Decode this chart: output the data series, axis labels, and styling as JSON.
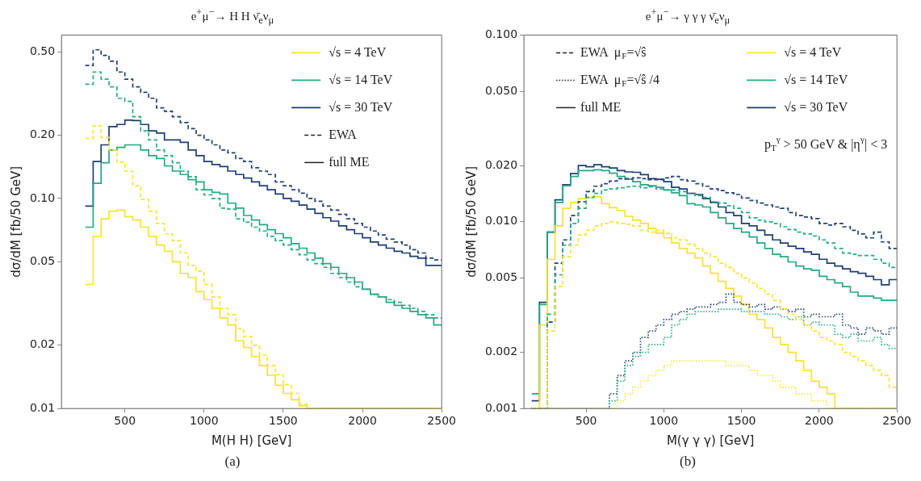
{
  "chart_data": [
    {
      "type": "histogram",
      "title": "e$^{+}$μ$^{−}$→ H H ν̄$_{e}$ν$_{μ}$",
      "xlabel": "M(H H) [GeV]",
      "ylabel": "dσ/dM [fb/50 GeV]",
      "log": "y",
      "legend": "top right",
      "bins": [
        250,
        300,
        350,
        400,
        450,
        500,
        550,
        600,
        650,
        700,
        750,
        800,
        850,
        900,
        950,
        1000,
        1050,
        1100,
        1150,
        1200,
        1250,
        1300,
        1350,
        1400,
        1450,
        1500,
        1550,
        1600,
        1650,
        1700,
        1750,
        1800,
        1850,
        1900,
        1950,
        2000,
        2050,
        2100,
        2150,
        2200,
        2250,
        2300,
        2350,
        2400,
        2450,
        2500
      ],
      "xlim": [
        100,
        2500
      ],
      "xticks": [
        500,
        1000,
        1500,
        2000,
        2500
      ],
      "ylim": [
        0.01,
        0.6
      ],
      "yticks": [
        0.01,
        0.02,
        0.05,
        {
          "value": 0.1,
          "label": "0.10"
        },
        {
          "value": 0.2,
          "label": "0.20"
        },
        {
          "value": 0.5,
          "label": "0.50"
        }
      ],
      "annotations": [
        "EWA",
        "full ME",
        "(a)"
      ],
      "series": [
        {
          "color": "#fbe437",
          "line_style": "dashed",
          "values": [
            0.193,
            0.222,
            0.195,
            0.17,
            0.149,
            0.135,
            0.115,
            0.099,
            0.087,
            0.076,
            0.068,
            0.063,
            0.055,
            0.048,
            0.045,
            0.039,
            0.034,
            0.03,
            0.028,
            0.024,
            0.022,
            0.02,
            0.018,
            0.016,
            0.0145,
            0.013,
            0.0118,
            0.0105,
            null,
            null,
            null,
            null,
            null,
            null,
            null,
            null,
            null,
            null,
            null,
            null,
            null,
            null,
            null,
            null,
            null
          ]
        },
        {
          "color": "#28ab86",
          "line_style": "dashed",
          "values": [
            0.35,
            0.4,
            0.37,
            0.34,
            0.3,
            0.29,
            0.245,
            0.21,
            0.19,
            0.17,
            0.16,
            0.148,
            0.135,
            0.127,
            0.11,
            0.104,
            0.1,
            0.09,
            0.089,
            0.08,
            0.077,
            0.073,
            0.07,
            0.066,
            0.063,
            0.06,
            0.057,
            0.054,
            0.051,
            0.049,
            0.047,
            0.044,
            0.042,
            0.04,
            0.038,
            0.037,
            0.035,
            0.034,
            0.033,
            0.032,
            0.031,
            0.03,
            0.029,
            0.028,
            0.027
          ]
        },
        {
          "color": "#204274",
          "line_style": "dashed",
          "values": [
            0.43,
            0.51,
            0.48,
            0.45,
            0.4,
            0.37,
            0.34,
            0.32,
            0.3,
            0.27,
            0.26,
            0.245,
            0.23,
            0.215,
            0.2,
            0.19,
            0.18,
            0.17,
            0.165,
            0.155,
            0.15,
            0.14,
            0.135,
            0.13,
            0.12,
            0.115,
            0.11,
            0.106,
            0.1,
            0.097,
            0.092,
            0.088,
            0.084,
            0.08,
            0.076,
            0.073,
            0.07,
            0.067,
            0.064,
            0.062,
            0.06,
            0.057,
            0.055,
            0.052,
            0.051
          ]
        },
        {
          "name": "√s = 4 TeV",
          "color": "#fbe134",
          "line_style": "solid",
          "values": [
            0.039,
            0.066,
            0.08,
            0.087,
            0.088,
            0.082,
            0.079,
            0.073,
            0.066,
            0.06,
            0.056,
            0.05,
            0.044,
            0.042,
            0.036,
            0.033,
            0.03,
            0.027,
            0.025,
            0.021,
            0.0195,
            0.0177,
            0.016,
            0.0144,
            0.0129,
            0.0118,
            0.011,
            0.0103,
            null,
            null,
            null,
            null,
            null,
            null,
            null,
            null,
            null,
            null,
            null,
            null,
            null,
            null,
            null,
            null,
            null
          ]
        },
        {
          "name": "√s = 14 TeV",
          "color": "#25a883",
          "line_style": "solid",
          "values": [
            0.073,
            0.118,
            0.148,
            0.17,
            0.175,
            0.18,
            0.18,
            0.17,
            0.16,
            0.155,
            0.143,
            0.135,
            0.13,
            0.123,
            0.12,
            0.11,
            0.107,
            0.105,
            0.095,
            0.09,
            0.083,
            0.079,
            0.075,
            0.071,
            0.068,
            0.065,
            0.061,
            0.058,
            0.055,
            0.052,
            0.049,
            0.047,
            0.044,
            0.042,
            0.04,
            0.037,
            0.035,
            0.034,
            0.032,
            0.031,
            0.03,
            0.029,
            0.028,
            0.027,
            0.025
          ]
        },
        {
          "name": "√s = 30 TeV",
          "color": "#1d3f71",
          "line_style": "solid",
          "values": [
            0.092,
            0.15,
            0.18,
            0.22,
            0.225,
            0.236,
            0.235,
            0.225,
            0.21,
            0.205,
            0.19,
            0.19,
            0.185,
            0.17,
            0.16,
            0.15,
            0.145,
            0.142,
            0.135,
            0.13,
            0.125,
            0.12,
            0.115,
            0.11,
            0.105,
            0.1,
            0.097,
            0.093,
            0.089,
            0.085,
            0.081,
            0.078,
            0.074,
            0.071,
            0.068,
            0.065,
            0.062,
            0.06,
            0.058,
            0.056,
            0.055,
            0.053,
            0.052,
            0.048,
            0.048
          ]
        }
      ]
    },
    {
      "type": "histogram",
      "title": "e$^{+}$μ$^{−}$→ γ γ γ ν̄$_{e}$ν$_{μ}$",
      "xlabel": "M(γ γ γ) [GeV]",
      "ylabel": "dσ/dM [fb/50 GeV]",
      "log": "y",
      "legend": "top right",
      "bins": [
        150,
        200,
        250,
        300,
        350,
        400,
        450,
        500,
        550,
        600,
        650,
        700,
        750,
        800,
        850,
        900,
        950,
        1000,
        1050,
        1100,
        1150,
        1200,
        1250,
        1300,
        1350,
        1400,
        1450,
        1500,
        1550,
        1600,
        1650,
        1700,
        1750,
        1800,
        1850,
        1900,
        1950,
        2000,
        2050,
        2100,
        2150,
        2200,
        2250,
        2300,
        2350,
        2400,
        2450,
        2500
      ],
      "xlim": [
        100,
        2500
      ],
      "xticks": [
        500,
        1000,
        1500,
        2000,
        2500
      ],
      "ylim": [
        0.001,
        0.1
      ],
      "yticks": [
        0.001,
        0.002,
        0.005,
        {
          "value": 0.01,
          "label": "0.010"
        },
        {
          "value": 0.02,
          "label": "0.020"
        },
        {
          "value": 0.05,
          "label": "0.050"
        },
        {
          "value": 0.1,
          "label": "0.100"
        }
      ],
      "annotations": [
        "EWA  μ$_{F}$=√ŝ",
        "EWA  μ$_{F}$=√ŝ /4",
        "full ME",
        "p$_{T}$$^{γ}$ > 50 GeV & |η$^{γ}$| < 3",
        "(b)"
      ],
      "series": [
        {
          "color": "#fbe437",
          "line_style": "dashed",
          "values": [
            null,
            null,
            0.0026,
            0.0045,
            0.0065,
            0.0075,
            0.0085,
            0.009,
            0.0095,
            0.0098,
            0.01,
            0.0098,
            0.0097,
            0.0095,
            0.009,
            0.0088,
            0.009,
            0.0087,
            0.0082,
            0.008,
            0.0076,
            0.0072,
            0.0068,
            0.0065,
            0.006,
            0.0057,
            0.0053,
            0.005,
            0.0047,
            0.0044,
            0.0041,
            0.0038,
            0.0034,
            0.0032,
            0.003,
            0.0028,
            0.0026,
            0.0024,
            0.0023,
            0.0022,
            0.002,
            0.0019,
            0.0018,
            0.0017,
            0.0016,
            0.0015,
            0.0013
          ]
        },
        {
          "color": "#28ab86",
          "line_style": "dashed",
          "values": [
            null,
            null,
            0.0032,
            0.0052,
            0.0075,
            0.0098,
            0.0118,
            0.0135,
            0.0142,
            0.0148,
            0.015,
            0.0152,
            0.0154,
            0.0155,
            0.0152,
            0.0154,
            0.015,
            0.0148,
            0.0148,
            0.0145,
            0.0142,
            0.0138,
            0.0135,
            0.0128,
            0.0126,
            0.0122,
            0.0118,
            0.0112,
            0.0105,
            0.0102,
            0.01,
            0.0098,
            0.0094,
            0.0091,
            0.0088,
            0.0086,
            0.0084,
            0.008,
            0.0077,
            0.0072,
            0.0068,
            0.0067,
            0.0066,
            0.0066,
            0.0063,
            0.006,
            0.0057
          ]
        },
        {
          "color": "#204274",
          "line_style": "dashed",
          "values": [
            null,
            null,
            0.0029,
            0.006,
            0.008,
            0.0108,
            0.0128,
            0.0145,
            0.0155,
            0.016,
            0.0165,
            0.017,
            0.017,
            0.0172,
            0.017,
            0.0168,
            0.0168,
            0.0172,
            0.0175,
            0.0168,
            0.0165,
            0.016,
            0.0155,
            0.015,
            0.0147,
            0.0143,
            0.014,
            0.0134,
            0.013,
            0.0126,
            0.0123,
            0.012,
            0.0118,
            0.0112,
            0.0108,
            0.0106,
            0.0104,
            0.0098,
            0.0096,
            0.0098,
            0.0094,
            0.009,
            0.0086,
            0.0082,
            0.0088,
            0.0078,
            0.0072
          ]
        },
        {
          "color": "#fbe73a",
          "line_style": "dotted",
          "values": [
            null,
            null,
            null,
            null,
            null,
            null,
            null,
            null,
            null,
            null,
            null,
            0.0011,
            0.0012,
            0.0013,
            0.0014,
            0.0015,
            0.0016,
            0.0017,
            0.0018,
            0.0018,
            0.0018,
            0.0018,
            0.0018,
            0.0018,
            0.0018,
            0.0017,
            0.0017,
            0.0017,
            0.0016,
            0.0015,
            0.0015,
            0.0014,
            0.0013,
            0.0013,
            0.0012,
            0.0012,
            0.0011,
            0.0011,
            null,
            null,
            null,
            null,
            null,
            null,
            null,
            null,
            null
          ]
        },
        {
          "color": "#2bae89",
          "line_style": "dotted",
          "values": [
            null,
            null,
            null,
            null,
            null,
            null,
            null,
            null,
            null,
            null,
            0.0011,
            0.0014,
            0.0017,
            0.0019,
            0.002,
            0.0022,
            0.0022,
            0.0024,
            0.0028,
            0.003,
            0.0032,
            0.0033,
            0.0033,
            0.0033,
            0.0034,
            0.0034,
            0.0034,
            0.0033,
            0.0033,
            0.0033,
            0.0032,
            0.0032,
            0.0031,
            0.003,
            0.0031,
            0.0028,
            0.0029,
            0.0028,
            0.0028,
            0.0025,
            0.0024,
            0.0025,
            0.0023,
            0.0023,
            0.0024,
            0.0022,
            0.0021
          ]
        },
        {
          "color": "#234577",
          "line_style": "dotted",
          "values": [
            null,
            null,
            null,
            null,
            null,
            null,
            null,
            null,
            null,
            null,
            0.0012,
            0.0015,
            0.0018,
            0.002,
            0.0024,
            0.0026,
            0.0028,
            0.003,
            0.0032,
            0.0033,
            0.0034,
            0.0035,
            0.0035,
            0.0036,
            0.0037,
            0.0041,
            0.0037,
            0.0036,
            0.0035,
            0.0036,
            0.0034,
            0.0035,
            0.0034,
            0.0033,
            0.0034,
            0.0031,
            0.0032,
            0.0031,
            0.0031,
            0.0032,
            0.0028,
            0.0027,
            0.0025,
            0.0027,
            0.0026,
            0.0025,
            0.0027
          ]
        },
        {
          "name": "√s = 4 TeV",
          "color": "#fbe134",
          "line_style": "solid",
          "values": [
            null,
            0.0028,
            0.0063,
            0.0095,
            0.0118,
            0.0127,
            0.0133,
            0.0135,
            0.0136,
            0.0125,
            0.0119,
            0.0115,
            0.0107,
            0.0102,
            0.0098,
            0.0092,
            0.0087,
            0.0082,
            0.0077,
            0.0072,
            0.0068,
            0.0064,
            0.0058,
            0.0053,
            0.0048,
            0.0044,
            0.004,
            0.0036,
            0.0032,
            0.003,
            0.0027,
            0.0024,
            0.0022,
            0.002,
            0.0018,
            0.0016,
            0.0014,
            0.0013,
            0.0012,
            null,
            null,
            null,
            null,
            null,
            null,
            null,
            null
          ]
        },
        {
          "name": "√s = 14 TeV",
          "color": "#25a883",
          "line_style": "solid",
          "values": [
            0.0012,
            0.0036,
            0.0088,
            0.0127,
            0.0156,
            0.0175,
            0.0188,
            0.0188,
            0.019,
            0.0188,
            0.0182,
            0.0175,
            0.0169,
            0.0164,
            0.0158,
            0.0156,
            0.0153,
            0.0148,
            0.0143,
            0.0138,
            0.0125,
            0.0123,
            0.012,
            0.0112,
            0.0105,
            0.0098,
            0.0092,
            0.0088,
            0.0083,
            0.0077,
            0.0072,
            0.0067,
            0.0065,
            0.0061,
            0.0058,
            0.0056,
            0.0055,
            0.0051,
            0.0049,
            0.0047,
            0.0045,
            0.0042,
            0.004,
            0.004,
            0.0039,
            0.0038,
            0.0038
          ]
        },
        {
          "name": "√s = 30 TeV",
          "color": "#1d3f71",
          "line_style": "solid",
          "values": [
            0.0011,
            0.0037,
            0.0088,
            0.0131,
            0.0158,
            0.0181,
            0.02,
            0.0197,
            0.0202,
            0.0197,
            0.0194,
            0.0188,
            0.0185,
            0.0184,
            0.0179,
            0.017,
            0.0169,
            0.0164,
            0.0153,
            0.015,
            0.0142,
            0.014,
            0.0133,
            0.0127,
            0.012,
            0.0112,
            0.0108,
            0.0098,
            0.0095,
            0.009,
            0.0085,
            0.008,
            0.0077,
            0.0074,
            0.0072,
            0.0069,
            0.0067,
            0.0063,
            0.006,
            0.0058,
            0.0056,
            0.0054,
            0.0053,
            0.0051,
            0.0049,
            0.0046,
            0.0049
          ]
        }
      ]
    }
  ]
}
